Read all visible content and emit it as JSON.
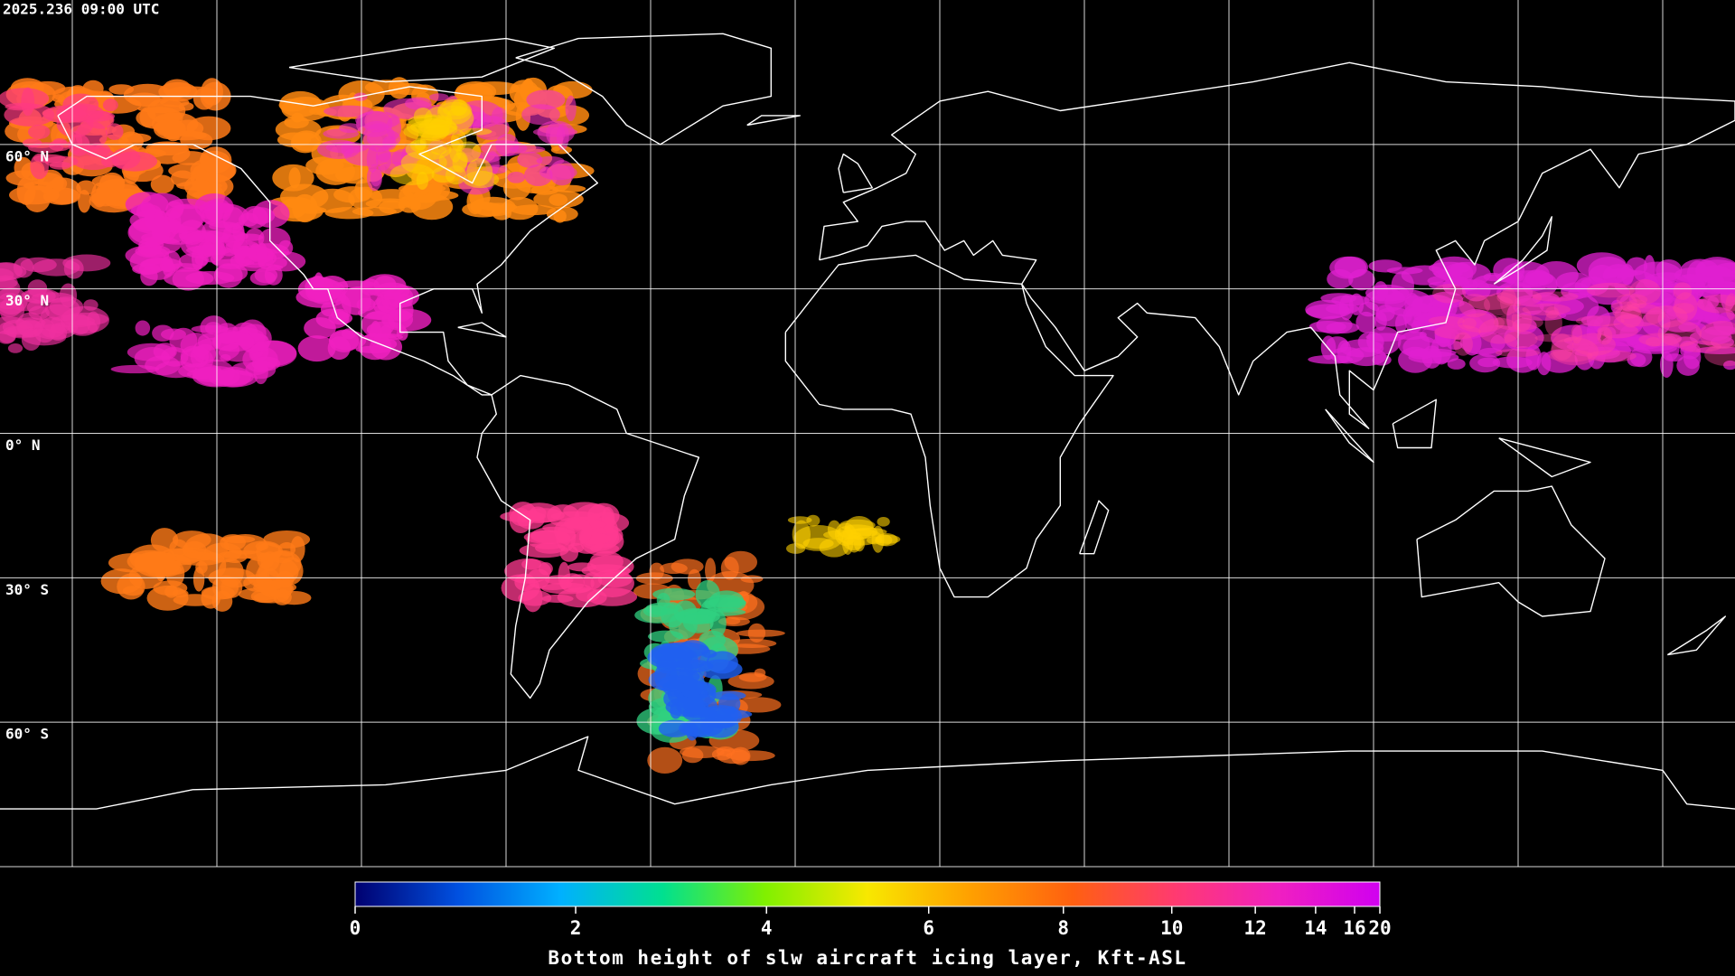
{
  "header": {
    "timestamp": "2025.236 09:00 UTC"
  },
  "map": {
    "lat_range": [
      -90,
      90
    ],
    "lat_labels": [
      {
        "value": 60,
        "label": "60° N"
      },
      {
        "value": 30,
        "label": "30° N"
      },
      {
        "value": 0,
        "label": "0° N"
      },
      {
        "value": -30,
        "label": "30° S"
      },
      {
        "value": -60,
        "label": "60° S"
      }
    ]
  },
  "colorbar": {
    "title": "Bottom height of slw aircraft icing layer, Kft-ASL",
    "range": [
      0,
      20
    ],
    "ticks": [
      0,
      2,
      4,
      6,
      8,
      10,
      12,
      14,
      16,
      20
    ],
    "colors": [
      "#000070",
      "#0050e0",
      "#00b0ff",
      "#00e090",
      "#80f000",
      "#f8e800",
      "#ffa000",
      "#ff6010",
      "#ff3a70",
      "#f020c0",
      "#d000f0"
    ]
  }
}
